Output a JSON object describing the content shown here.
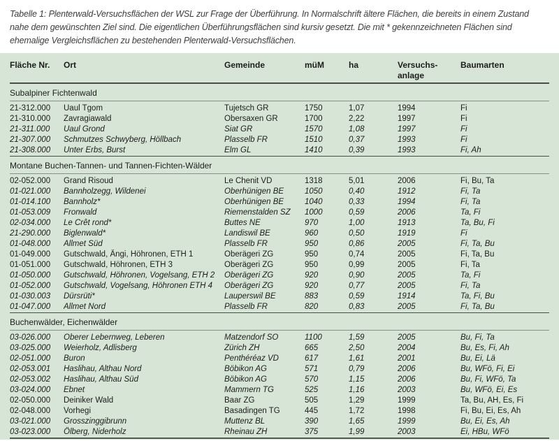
{
  "caption": {
    "lines": [
      "Tabelle 1: Plenterwald-Versuchsflächen der WSL zur Frage der Überführung. In Normalschrift ältere Flächen, die bereits in einem Zustand",
      "nahe dem gewünschten Ziel sind. Die eigentlichen Überführungsflächen sind kursiv gesetzt. Die mit * gekennzeichneten Flächen sind",
      "ehemalige Vergleichsflächen zu bestehenden Plenterwald-Versuchsflächen."
    ]
  },
  "colors": {
    "table_background": "#d7e5d7",
    "text": "#1d1d1b",
    "caption_text": "#3d3d3b",
    "rule_dark": "#4a4f4a",
    "rule_light": "#879287"
  },
  "table": {
    "columns": [
      "Fläche Nr.",
      "Ort",
      "Gemeinde",
      "müM",
      "ha",
      "Versuchs-\nanlage",
      "Baumarten"
    ],
    "sections": [
      {
        "title": "Subalpiner Fichtenwald",
        "rows": [
          {
            "nr": "21-312.000",
            "ort": "Uaul Tgom",
            "gemeinde": "Tujetsch GR",
            "muem": "1750",
            "ha": "1,07",
            "anlage": "1994",
            "baumarten": "Fi",
            "italic": false
          },
          {
            "nr": "21-310.000",
            "ort": "Zavragiawald",
            "gemeinde": "Obersaxen GR",
            "muem": "1700",
            "ha": "2,22",
            "anlage": "1997",
            "baumarten": "Fi",
            "italic": false
          },
          {
            "nr": "21-311.000",
            "ort": "Uaul Grond",
            "gemeinde": "Siat GR",
            "muem": "1570",
            "ha": "1,08",
            "anlage": "1997",
            "baumarten": "Fi",
            "italic": true
          },
          {
            "nr": "21-307.000",
            "ort": "Schmutzes Schwyberg, Höllbach",
            "gemeinde": "Plasselb FR",
            "muem": "1510",
            "ha": "0,37",
            "anlage": "1993",
            "baumarten": "Fi",
            "italic": true
          },
          {
            "nr": "21-308.000",
            "ort": "Unter Erbs, Burst",
            "gemeinde": "Elm GL",
            "muem": "1410",
            "ha": "0,39",
            "anlage": "1993",
            "baumarten": "Fi, Ah",
            "italic": true
          }
        ]
      },
      {
        "title": "Montane Buchen-Tannen- und Tannen-Fichten-Wälder",
        "rows": [
          {
            "nr": "02-052.000",
            "ort": "Grand Risoud",
            "gemeinde": "Le Chenit VD",
            "muem": "1318",
            "ha": "5,01",
            "anlage": "2006",
            "baumarten": "Fi, Bu, Ta",
            "italic": false
          },
          {
            "nr": "01-021.000",
            "ort": "Bannholzegg, Wildenei",
            "gemeinde": "Oberhünigen BE",
            "muem": "1050",
            "ha": "0,40",
            "anlage": "1912",
            "baumarten": "Fi, Ta",
            "italic": true
          },
          {
            "nr": "01-014.100",
            "ort": "Bannholz*",
            "gemeinde": "Oberhünigen BE",
            "muem": "1040",
            "ha": "0,33",
            "anlage": "1994",
            "baumarten": "Fi, Ta",
            "italic": true
          },
          {
            "nr": "01-053.009",
            "ort": "Fronwald",
            "gemeinde": "Riemenstalden SZ",
            "muem": "1000",
            "ha": "0,59",
            "anlage": "2006",
            "baumarten": "Ta, Fi",
            "italic": true
          },
          {
            "nr": "02-034.000",
            "ort": "Le Crêt rond*",
            "gemeinde": "Buttes NE",
            "muem": "970",
            "ha": "1,00",
            "anlage": "1913",
            "baumarten": "Ta, Bu, Fi",
            "italic": true
          },
          {
            "nr": "21-290.000",
            "ort": "Biglenwald*",
            "gemeinde": "Landiswil BE",
            "muem": "960",
            "ha": "0,50",
            "anlage": "1919",
            "baumarten": "Fi",
            "italic": true
          },
          {
            "nr": "01-048.000",
            "ort": "Allmet Süd",
            "gemeinde": "Plasselb FR",
            "muem": "950",
            "ha": "0,86",
            "anlage": "2005",
            "baumarten": "Fi, Ta, Bu",
            "italic": true
          },
          {
            "nr": "01-049.000",
            "ort": "Gutschwald, Ängi, Höhronen, ETH 1",
            "gemeinde": "Oberägeri ZG",
            "muem": "950",
            "ha": "0,74",
            "anlage": "2005",
            "baumarten": "Fi, Ta, Bu",
            "italic": false
          },
          {
            "nr": "01-051.000",
            "ort": "Gutschwald, Höhronen, ETH 3",
            "gemeinde": "Oberägeri ZG",
            "muem": "950",
            "ha": "0,99",
            "anlage": "2005",
            "baumarten": "Fi, Ta",
            "italic": false
          },
          {
            "nr": "01-050.000",
            "ort": "Gutschwald, Höhronen, Vogelsang, ETH 2",
            "gemeinde": "Oberägeri ZG",
            "muem": "920",
            "ha": "0,90",
            "anlage": "2005",
            "baumarten": "Ta, Fi",
            "italic": true
          },
          {
            "nr": "01-052.000",
            "ort": "Gutschwald, Vogelsang, Höhronen ETH 4",
            "gemeinde": "Oberägeri ZG",
            "muem": "920",
            "ha": "0,77",
            "anlage": "2005",
            "baumarten": "Fi, Ta",
            "italic": true
          },
          {
            "nr": "01-030.003",
            "ort": "Dürsrüti*",
            "gemeinde": "Lauperswil BE",
            "muem": "883",
            "ha": "0,59",
            "anlage": "1914",
            "baumarten": "Ta, Fi, Bu",
            "italic": true
          },
          {
            "nr": "01-047.000",
            "ort": "Allmet Nord",
            "gemeinde": "Plasselb FR",
            "muem": "820",
            "ha": "0,83",
            "anlage": "2005",
            "baumarten": "Fi, Ta, Bu",
            "italic": true
          }
        ]
      },
      {
        "title": "Buchenwälder, Eichenwälder",
        "rows": [
          {
            "nr": "03-026.000",
            "ort": "Oberer Lebernweg, Leberen",
            "gemeinde": "Matzendorf SO",
            "muem": "1100",
            "ha": "1,59",
            "anlage": "2005",
            "baumarten": "Bu, Fi, Ta",
            "italic": true
          },
          {
            "nr": "03-025.000",
            "ort": "Weierholz, Adlisberg",
            "gemeinde": "Zürich ZH",
            "muem": "665",
            "ha": "2,50",
            "anlage": "2004",
            "baumarten": "Bu, Es, Fi, Ah",
            "italic": true
          },
          {
            "nr": "02-051.000",
            "ort": "Buron",
            "gemeinde": "Penthéréaz VD",
            "muem": "617",
            "ha": "1,61",
            "anlage": "2001",
            "baumarten": "Bu, Ei, Lä",
            "italic": true
          },
          {
            "nr": "02-053.001",
            "ort": "Haslihau, Althau Nord",
            "gemeinde": "Böbikon AG",
            "muem": "571",
            "ha": "0,79",
            "anlage": "2006",
            "baumarten": "Bu, WFö, Fi, Ei",
            "italic": true
          },
          {
            "nr": "02-053.002",
            "ort": "Haslihau, Althau Süd",
            "gemeinde": "Böbikon AG",
            "muem": "570",
            "ha": "1,15",
            "anlage": "2006",
            "baumarten": "Bu, Fi, WFö, Ta",
            "italic": true
          },
          {
            "nr": "03-024.000",
            "ort": "Ebnet",
            "gemeinde": "Mammern TG",
            "muem": "525",
            "ha": "1,16",
            "anlage": "2003",
            "baumarten": "Bu, WFö, Ei, Es",
            "italic": true
          },
          {
            "nr": "02-050.000",
            "ort": "Deiniker Wald",
            "gemeinde": "Baar ZG",
            "muem": "505",
            "ha": "1,29",
            "anlage": "1999",
            "baumarten": "Ta, Bu, AH, Es, Fi",
            "italic": false
          },
          {
            "nr": "02-048.000",
            "ort": "Vorhegi",
            "gemeinde": "Basadingen TG",
            "muem": "445",
            "ha": "1,72",
            "anlage": "1998",
            "baumarten": "Fi, Bu, Ei, Es, Ah",
            "italic": false
          },
          {
            "nr": "03-021.000",
            "ort": "Grosszinggibrunn",
            "gemeinde": "Muttenz BL",
            "muem": "390",
            "ha": "1,65",
            "anlage": "1999",
            "baumarten": "Bu, Ei, Es, Ah",
            "italic": true
          },
          {
            "nr": "03-023.000",
            "ort": "Ölberg, Niderholz",
            "gemeinde": "Rheinau ZH",
            "muem": "375",
            "ha": "1,99",
            "anlage": "2003",
            "baumarten": "Ei, HBu, WFö",
            "italic": true
          }
        ]
      }
    ]
  }
}
